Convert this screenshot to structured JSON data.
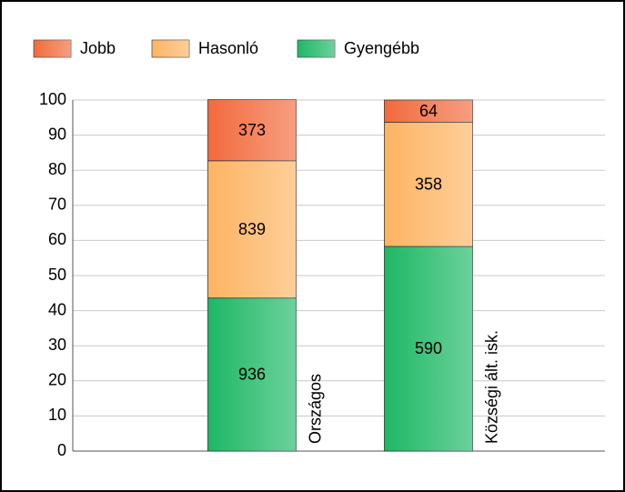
{
  "chart_data": {
    "type": "stacked_bar_percent",
    "categories": [
      "Országos",
      "Községi ált. isk."
    ],
    "series": [
      {
        "name": "Jobb",
        "color": "#f26a3c",
        "values": [
          17.4,
          6.3
        ],
        "counts": [
          373,
          64
        ]
      },
      {
        "name": "Hasonló",
        "color": "#fdb462",
        "values": [
          39.1,
          35.4
        ],
        "counts": [
          839,
          358
        ]
      },
      {
        "name": "Gyengébb",
        "color": "#1db865",
        "values": [
          43.6,
          58.3
        ],
        "counts": [
          936,
          590
        ]
      }
    ],
    "ylim": [
      0,
      100
    ],
    "yticks": [
      0,
      10,
      20,
      30,
      40,
      50,
      60,
      70,
      80,
      90,
      100
    ],
    "grid": true
  }
}
